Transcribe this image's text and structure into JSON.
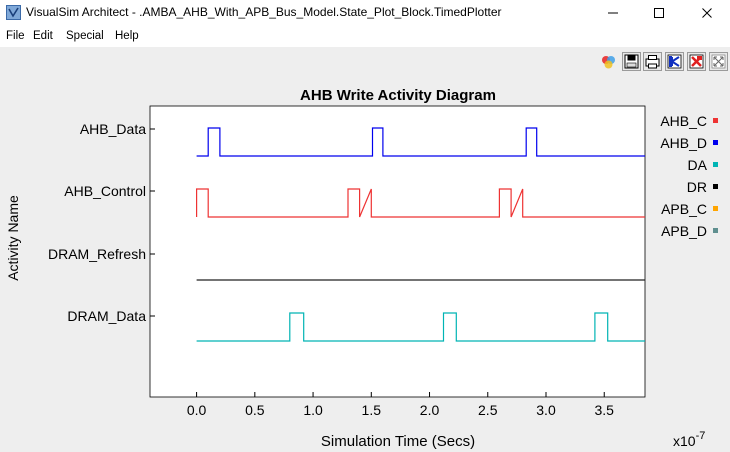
{
  "window": {
    "title": "VisualSim Architect - .AMBA_AHB_With_APB_Bus_Model.State_Plot_Block.TimedPlotter",
    "minimize_icon": "minimize-icon",
    "maximize_icon": "maximize-icon",
    "close_icon": "close-icon"
  },
  "menu": {
    "items": [
      "File",
      "Edit",
      "Special",
      "Help"
    ]
  },
  "toolbar": {
    "icons": [
      "color-fill-icon",
      "save-icon",
      "print-icon",
      "reset-axes-icon",
      "fill-plot-icon",
      "zoom-fit-icon"
    ]
  },
  "chart_data": {
    "type": "line",
    "title": "AHB Write Activity Diagram",
    "xlabel": "Simulation Time (Secs)",
    "ylabel": "Activity Name",
    "x_exponent": "x10",
    "x_exponent_power": "-7",
    "xlim": [
      -0.4,
      3.85
    ],
    "xticks": [
      "0.0",
      "0.5",
      "1.0",
      "1.5",
      "2.0",
      "2.5",
      "3.0",
      "3.5"
    ],
    "xtick_values": [
      0.0,
      0.5,
      1.0,
      1.5,
      2.0,
      2.5,
      3.0,
      3.5
    ],
    "ycategories": [
      "AHB_Data",
      "AHB_Control",
      "DRAM_Refresh",
      "DRAM_Data"
    ],
    "grid": false,
    "legend_position": "right",
    "series": [
      {
        "name": "AHB_D",
        "row": 0,
        "color": "#0000ee",
        "x": [
          0.0,
          0.1,
          0.1,
          0.2,
          0.2,
          1.51,
          1.51,
          1.6,
          1.6,
          2.83,
          2.83,
          2.92,
          2.92,
          3.85
        ],
        "y": [
          0,
          0,
          1,
          1,
          0,
          0,
          1,
          1,
          0,
          0,
          1,
          1,
          0,
          0
        ]
      },
      {
        "name": "AHB_C",
        "row": 1,
        "color": "#ee3333",
        "x": [
          0.0,
          0.0,
          0.1,
          0.1,
          1.3,
          1.3,
          1.4,
          1.4,
          1.5,
          1.5,
          2.6,
          2.6,
          2.7,
          2.7,
          2.8,
          2.8,
          3.85
        ],
        "y": [
          0,
          1,
          1,
          0,
          0,
          1,
          1,
          0,
          1,
          0,
          0,
          1,
          1,
          0,
          1,
          0,
          0
        ]
      },
      {
        "name": "DR",
        "row": 2,
        "color": "#222222",
        "x": [
          0.0,
          3.85
        ],
        "y": [
          0,
          0
        ]
      },
      {
        "name": "DA",
        "row": 3,
        "color": "#00b4b4",
        "x": [
          0.0,
          0.8,
          0.8,
          0.92,
          0.92,
          2.12,
          2.12,
          2.23,
          2.23,
          3.42,
          3.42,
          3.53,
          3.53,
          3.85
        ],
        "y": [
          0,
          0,
          1,
          1,
          0,
          0,
          1,
          1,
          0,
          0,
          1,
          1,
          0,
          0
        ]
      }
    ],
    "legend": [
      {
        "name": "AHB_C",
        "color": "#ee3333"
      },
      {
        "name": "AHB_D",
        "color": "#0000ee"
      },
      {
        "name": "DA",
        "color": "#00b4b4"
      },
      {
        "name": "DR",
        "color": "#000000"
      },
      {
        "name": "APB_C",
        "color": "#ffa500"
      },
      {
        "name": "APB_D",
        "color": "#5f8f8f"
      }
    ]
  }
}
